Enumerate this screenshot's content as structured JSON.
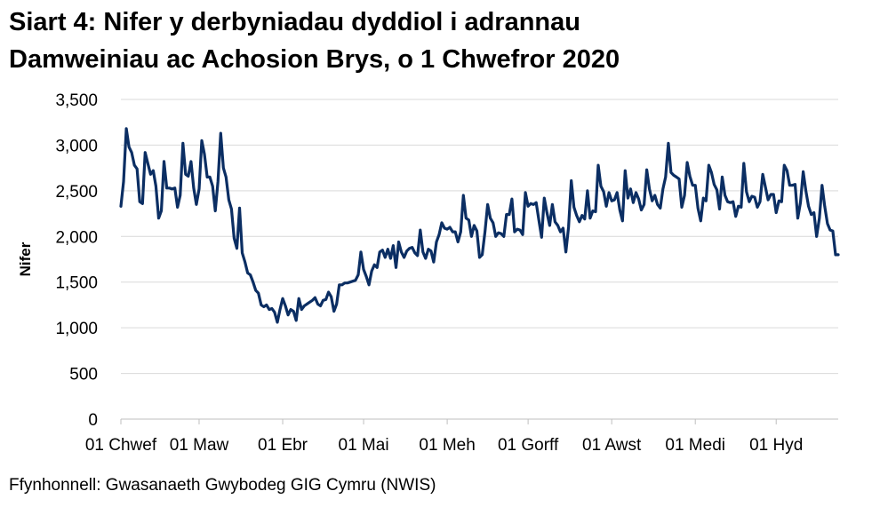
{
  "title_lines": [
    "Siart 4: Nifer y derbyniadau dyddiol i adrannau",
    "Damweiniau ac Achosion Brys, o 1 Chwefror 2020"
  ],
  "source": "Ffynhonnell: Gwasanaeth Gwybodeg GIG Cymru (NWIS)",
  "chart_data": {
    "type": "line",
    "title": "Siart 4: Nifer y derbyniadau dyddiol i adrannau Damweiniau ac Achosion Brys, o 1 Chwefror 2020",
    "xlabel": "",
    "ylabel": "Nifer",
    "ylim": [
      0,
      3500
    ],
    "yticks": [
      0,
      500,
      1000,
      1500,
      2000,
      2500,
      3000,
      3500
    ],
    "ytick_labels": [
      "0",
      "500",
      "1,000",
      "1,500",
      "2,000",
      "2,500",
      "3,000",
      "3,500"
    ],
    "xticks": [
      {
        "day": 0,
        "label": "01 Chwef"
      },
      {
        "day": 29,
        "label": "01 Maw"
      },
      {
        "day": 60,
        "label": "01 Ebr"
      },
      {
        "day": 90,
        "label": "01 Mai"
      },
      {
        "day": 121,
        "label": "01 Meh"
      },
      {
        "day": 151,
        "label": "01 Gorff"
      },
      {
        "day": 182,
        "label": "01 Awst"
      },
      {
        "day": 213,
        "label": "01 Medi"
      },
      {
        "day": 243,
        "label": "01 Hyd"
      }
    ],
    "grid": "horizontal",
    "series": [
      {
        "name": "",
        "color": "#0b2e63",
        "values": [
          2330,
          2600,
          3180,
          2980,
          2920,
          2780,
          2740,
          2380,
          2360,
          2920,
          2800,
          2680,
          2720,
          2550,
          2200,
          2280,
          2820,
          2530,
          2530,
          2520,
          2530,
          2320,
          2450,
          3020,
          2680,
          2660,
          2820,
          2530,
          2350,
          2520,
          3050,
          2900,
          2650,
          2650,
          2550,
          2280,
          2600,
          3130,
          2750,
          2650,
          2400,
          2300,
          1980,
          1870,
          2310,
          1820,
          1720,
          1600,
          1580,
          1500,
          1410,
          1380,
          1250,
          1230,
          1250,
          1200,
          1210,
          1170,
          1060,
          1200,
          1320,
          1240,
          1140,
          1200,
          1180,
          1080,
          1320,
          1200,
          1240,
          1260,
          1280,
          1300,
          1330,
          1260,
          1240,
          1300,
          1310,
          1390,
          1340,
          1180,
          1260,
          1470,
          1470,
          1490,
          1490,
          1500,
          1510,
          1520,
          1580,
          1830,
          1640,
          1560,
          1470,
          1620,
          1690,
          1660,
          1830,
          1850,
          1770,
          1860,
          1760,
          1900,
          1660,
          1940,
          1830,
          1770,
          1840,
          1870,
          1880,
          1820,
          1790,
          2070,
          1830,
          1760,
          1860,
          1840,
          1720,
          1940,
          2020,
          2150,
          2090,
          2080,
          2100,
          2050,
          2050,
          1940,
          2050,
          2450,
          2200,
          2180,
          2000,
          2120,
          2060,
          1770,
          1800,
          2050,
          2350,
          2200,
          2150,
          2000,
          2040,
          2030,
          2000,
          2240,
          2240,
          2410,
          2050,
          2080,
          2070,
          2020,
          2480,
          2330,
          2360,
          2350,
          2370,
          2180,
          1990,
          2420,
          2260,
          2120,
          2350,
          2160,
          2120,
          2050,
          2090,
          1830,
          2100,
          2610,
          2320,
          2230,
          2160,
          2230,
          2190,
          2500,
          2200,
          2280,
          2270,
          2780,
          2550,
          2490,
          2330,
          2480,
          2390,
          2400,
          2480,
          2290,
          2170,
          2720,
          2420,
          2520,
          2370,
          2480,
          2410,
          2290,
          2350,
          2730,
          2520,
          2390,
          2450,
          2350,
          2310,
          2520,
          2650,
          3020,
          2700,
          2670,
          2650,
          2630,
          2320,
          2450,
          2810,
          2660,
          2560,
          2560,
          2310,
          2170,
          2420,
          2390,
          2780,
          2700,
          2570,
          2510,
          2300,
          2650,
          2450,
          2380,
          2370,
          2380,
          2220,
          2330,
          2320,
          2800,
          2490,
          2380,
          2440,
          2430,
          2320,
          2380,
          2680,
          2540,
          2400,
          2460,
          2460,
          2260,
          2390,
          2380,
          2780,
          2720,
          2560,
          2560,
          2570,
          2200,
          2370,
          2710,
          2500,
          2330,
          2240,
          2260,
          2000,
          2200,
          2560,
          2330,
          2140,
          2070,
          2060,
          1800,
          1800
        ]
      }
    ]
  }
}
